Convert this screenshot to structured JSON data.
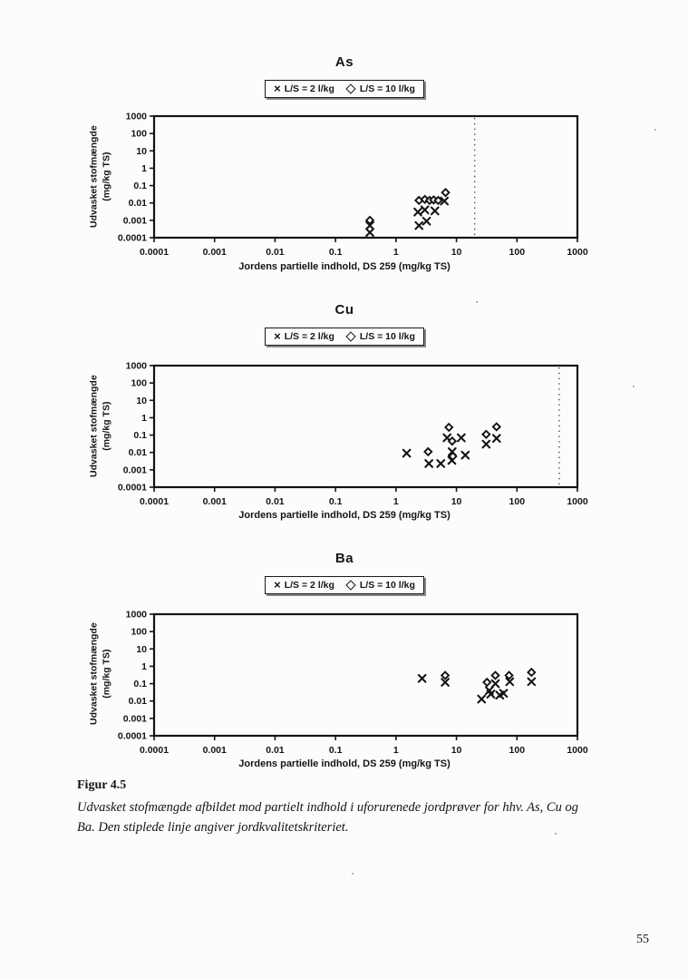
{
  "page": {
    "number": "55"
  },
  "figure_caption": {
    "label": "Figur 4.5",
    "line1": "Udvasket stofmængde afbildet mod partielt indhold i uforurenede jordprøver for hhv. As, Cu og",
    "line2": "Ba. Den stiplede linje angiver jordkvalitetskriteriet."
  },
  "legend": {
    "marker_x": "×",
    "marker_diamond": "◇",
    "label_x": "L/S = 2 l/kg",
    "label_diamond": "L/S = 10 l/kg"
  },
  "axis": {
    "x_title": "Jordens partielle indhold, DS 259 (mg/kg TS)",
    "y_title_line1": "Udvasket stofmængde",
    "y_title_line2": "(mg/kg TS)"
  },
  "ink_color": "#141414",
  "chart_data": [
    {
      "type": "scatter",
      "title": "As",
      "xlabel": "Jordens partielle indhold, DS 259 (mg/kg TS)",
      "ylabel": "Udvasket stofmængde (mg/kg TS)",
      "xscale": "log",
      "yscale": "log",
      "xlim": [
        0.0001,
        1000
      ],
      "ylim": [
        0.0001,
        1000
      ],
      "x_ticks": [
        0.0001,
        0.001,
        0.01,
        0.1,
        1,
        10,
        100,
        1000
      ],
      "y_ticks": [
        1000,
        100,
        10,
        1,
        0.1,
        0.01,
        0.001,
        0.0001
      ],
      "criterion_line_x": 20,
      "grid": false,
      "legend_position": "top",
      "series": [
        {
          "name": "L/S = 2 l/kg",
          "marker": "x",
          "points": [
            [
              0.37,
              0.0005
            ],
            [
              0.37,
              0.0002
            ],
            [
              2.4,
              0.0005
            ],
            [
              3.2,
              0.0009
            ],
            [
              2.3,
              0.003
            ],
            [
              3.0,
              0.004
            ],
            [
              4.4,
              0.0035
            ],
            [
              6.3,
              0.013
            ]
          ]
        },
        {
          "name": "L/S = 10 l/kg",
          "marker": "diamond",
          "points": [
            [
              0.37,
              0.001
            ],
            [
              2.4,
              0.014
            ],
            [
              3.0,
              0.016
            ],
            [
              3.6,
              0.014
            ],
            [
              4.2,
              0.015
            ],
            [
              5.0,
              0.014
            ],
            [
              6.6,
              0.04
            ]
          ]
        }
      ]
    },
    {
      "type": "scatter",
      "title": "Cu",
      "xlabel": "Jordens partielle indhold, DS 259 (mg/kg TS)",
      "ylabel": "Udvasket stofmængde (mg/kg TS)",
      "xscale": "log",
      "yscale": "log",
      "xlim": [
        0.0001,
        1000
      ],
      "ylim": [
        0.0001,
        1000
      ],
      "x_ticks": [
        0.0001,
        0.001,
        0.01,
        0.1,
        1,
        10,
        100,
        1000
      ],
      "y_ticks": [
        1000,
        100,
        10,
        1,
        0.1,
        0.01,
        0.001,
        0.0001
      ],
      "criterion_line_x": 500,
      "grid": false,
      "legend_position": "top",
      "series": [
        {
          "name": "L/S = 2 l/kg",
          "marker": "x",
          "points": [
            [
              1.5,
              0.009
            ],
            [
              3.5,
              0.0023
            ],
            [
              5.5,
              0.0023
            ],
            [
              7.0,
              0.07
            ],
            [
              8.5,
              0.011
            ],
            [
              8.4,
              0.0035
            ],
            [
              12,
              0.07
            ],
            [
              14,
              0.007
            ],
            [
              31,
              0.03
            ],
            [
              46,
              0.065
            ]
          ]
        },
        {
          "name": "L/S = 10 l/kg",
          "marker": "diamond",
          "points": [
            [
              3.4,
              0.011
            ],
            [
              7.5,
              0.28
            ],
            [
              8.5,
              0.045
            ],
            [
              8.7,
              0.006
            ],
            [
              31,
              0.11
            ],
            [
              46,
              0.3
            ]
          ]
        }
      ]
    },
    {
      "type": "scatter",
      "title": "Ba",
      "xlabel": "Jordens partielle indhold, DS 259 (mg/kg TS)",
      "ylabel": "Udvasket stofmængde (mg/kg TS)",
      "xscale": "log",
      "yscale": "log",
      "xlim": [
        0.0001,
        1000
      ],
      "ylim": [
        0.0001,
        1000
      ],
      "x_ticks": [
        0.0001,
        0.001,
        0.01,
        0.1,
        1,
        10,
        100,
        1000
      ],
      "y_ticks": [
        1000,
        100,
        10,
        1,
        0.1,
        0.01,
        0.001,
        0.0001
      ],
      "criterion_line_x": null,
      "grid": false,
      "legend_position": "top",
      "series": [
        {
          "name": "L/S = 2 l/kg",
          "marker": "x",
          "points": [
            [
              2.7,
              0.2
            ],
            [
              6.5,
              0.12
            ],
            [
              26,
              0.013
            ],
            [
              35,
              0.04
            ],
            [
              37,
              0.025
            ],
            [
              44,
              0.1
            ],
            [
              52,
              0.022
            ],
            [
              60,
              0.028
            ],
            [
              76,
              0.13
            ],
            [
              174,
              0.13
            ]
          ]
        },
        {
          "name": "L/S = 10 l/kg",
          "marker": "diamond",
          "points": [
            [
              6.5,
              0.3
            ],
            [
              32,
              0.12
            ],
            [
              44,
              0.3
            ],
            [
              74,
              0.3
            ],
            [
              174,
              0.45
            ]
          ]
        }
      ]
    }
  ]
}
